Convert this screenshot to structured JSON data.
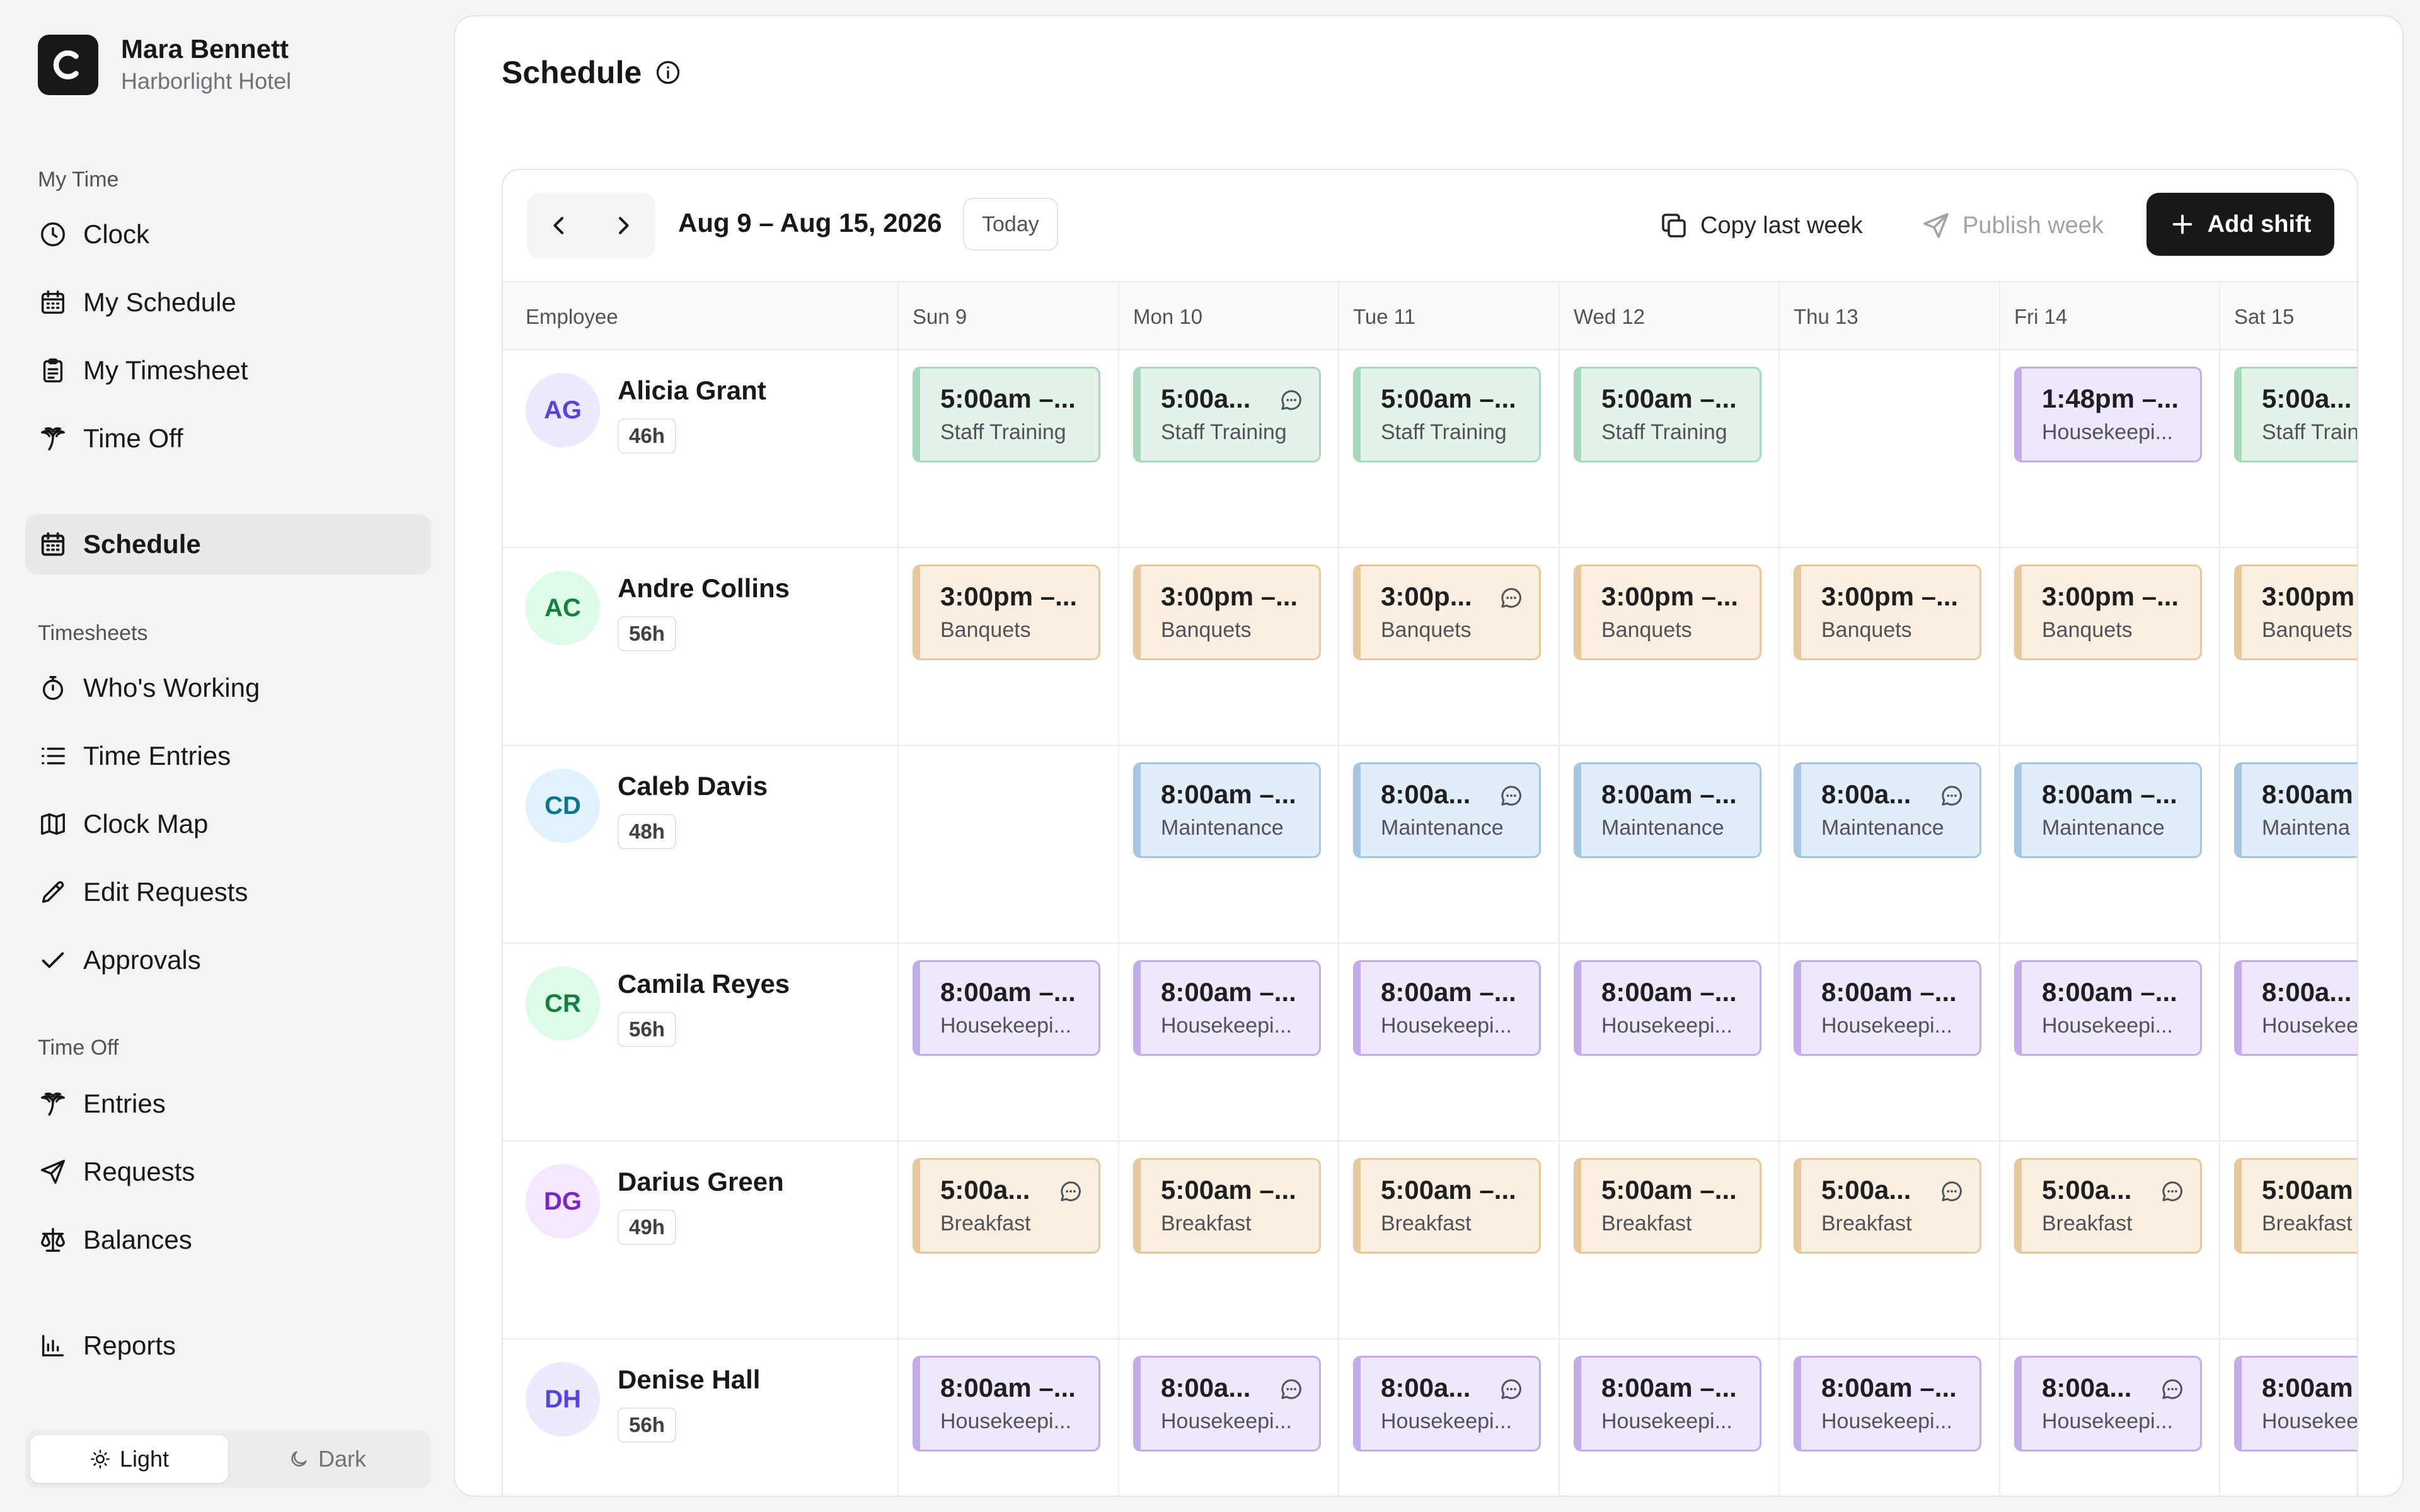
{
  "user": {
    "name": "Mara Bennett",
    "org": "Harborlight Hotel",
    "logo_letter": "C"
  },
  "sidebar": {
    "my_time_label": "My Time",
    "my_time": [
      {
        "label": "Clock",
        "icon": "clock-icon"
      },
      {
        "label": "My Schedule",
        "icon": "calendar-icon"
      },
      {
        "label": "My Timesheet",
        "icon": "clipboard-icon"
      },
      {
        "label": "Time Off",
        "icon": "palm-tree-icon"
      }
    ],
    "schedule": {
      "label": "Schedule",
      "icon": "calendar-icon"
    },
    "timesheets_label": "Timesheets",
    "timesheets": [
      {
        "label": "Who's Working",
        "icon": "stopwatch-icon"
      },
      {
        "label": "Time Entries",
        "icon": "list-icon"
      },
      {
        "label": "Clock Map",
        "icon": "map-icon"
      },
      {
        "label": "Edit Requests",
        "icon": "pencil-icon"
      },
      {
        "label": "Approvals",
        "icon": "check-icon"
      }
    ],
    "time_off_label": "Time Off",
    "time_off": [
      {
        "label": "Entries",
        "icon": "palm-tree-icon"
      },
      {
        "label": "Requests",
        "icon": "send-icon"
      },
      {
        "label": "Balances",
        "icon": "scale-icon"
      }
    ],
    "reports": {
      "label": "Reports",
      "icon": "bar-chart-icon"
    },
    "theme": {
      "light": "Light",
      "dark": "Dark",
      "selected": "Light"
    }
  },
  "page": {
    "title": "Schedule"
  },
  "toolbar": {
    "date_range": "Aug 9 – Aug 15, 2026",
    "today": "Today",
    "copy_last_week": "Copy last week",
    "publish_week": "Publish week",
    "add_shift": "Add shift"
  },
  "columns": [
    "Employee",
    "Sun 9",
    "Mon 10",
    "Tue 11",
    "Wed 12",
    "Thu 13",
    "Fri 14",
    "Sat 15"
  ],
  "colors": {
    "green": "#e3f3ea",
    "orange": "#fbefdf",
    "blue": "#e1edf8",
    "purple": "#efe8fb",
    "accent": "#18181b"
  },
  "employees": [
    {
      "initials": "AG",
      "name": "Alicia Grant",
      "hours": "46h",
      "avatar_bg": "#ede9fe",
      "avatar_fg": "#4f46e5",
      "shifts": [
        {
          "time": "5:00am –...",
          "role": "Staff Training",
          "color": "green",
          "note": false
        },
        {
          "time": "5:00a...",
          "role": "Staff Training",
          "color": "green",
          "note": true
        },
        {
          "time": "5:00am –...",
          "role": "Staff Training",
          "color": "green",
          "note": false
        },
        {
          "time": "5:00am –...",
          "role": "Staff Training",
          "color": "green",
          "note": false
        },
        null,
        {
          "time": "1:48pm –...",
          "role": "Housekeepi...",
          "color": "purple",
          "note": false
        },
        {
          "time": "5:00a...",
          "role": "Staff Traini",
          "color": "green",
          "note": false
        }
      ]
    },
    {
      "initials": "AC",
      "name": "Andre Collins",
      "hours": "56h",
      "avatar_bg": "#dcfce7",
      "avatar_fg": "#15803d",
      "shifts": [
        {
          "time": "3:00pm –...",
          "role": "Banquets",
          "color": "orange",
          "note": false
        },
        {
          "time": "3:00pm –...",
          "role": "Banquets",
          "color": "orange",
          "note": false
        },
        {
          "time": "3:00p...",
          "role": "Banquets",
          "color": "orange",
          "note": true
        },
        {
          "time": "3:00pm –...",
          "role": "Banquets",
          "color": "orange",
          "note": false
        },
        {
          "time": "3:00pm –...",
          "role": "Banquets",
          "color": "orange",
          "note": false
        },
        {
          "time": "3:00pm –...",
          "role": "Banquets",
          "color": "orange",
          "note": false
        },
        {
          "time": "3:00pm",
          "role": "Banquets",
          "color": "orange",
          "note": false
        }
      ]
    },
    {
      "initials": "CD",
      "name": "Caleb Davis",
      "hours": "48h",
      "avatar_bg": "#e0f2fe",
      "avatar_fg": "#0e7490",
      "shifts": [
        null,
        {
          "time": "8:00am –...",
          "role": "Maintenance",
          "color": "blue",
          "note": false
        },
        {
          "time": "8:00a...",
          "role": "Maintenance",
          "color": "blue",
          "note": true
        },
        {
          "time": "8:00am –...",
          "role": "Maintenance",
          "color": "blue",
          "note": false
        },
        {
          "time": "8:00a...",
          "role": "Maintenance",
          "color": "blue",
          "note": true
        },
        {
          "time": "8:00am –...",
          "role": "Maintenance",
          "color": "blue",
          "note": false
        },
        {
          "time": "8:00am",
          "role": "Maintena",
          "color": "blue",
          "note": false
        }
      ]
    },
    {
      "initials": "CR",
      "name": "Camila Reyes",
      "hours": "56h",
      "avatar_bg": "#dcfce7",
      "avatar_fg": "#15803d",
      "shifts": [
        {
          "time": "8:00am –...",
          "role": "Housekeepi...",
          "color": "purple",
          "note": false
        },
        {
          "time": "8:00am –...",
          "role": "Housekeepi...",
          "color": "purple",
          "note": false
        },
        {
          "time": "8:00am –...",
          "role": "Housekeepi...",
          "color": "purple",
          "note": false
        },
        {
          "time": "8:00am –...",
          "role": "Housekeepi...",
          "color": "purple",
          "note": false
        },
        {
          "time": "8:00am –...",
          "role": "Housekeepi...",
          "color": "purple",
          "note": false
        },
        {
          "time": "8:00am –...",
          "role": "Housekeepi...",
          "color": "purple",
          "note": false
        },
        {
          "time": "8:00a...",
          "role": "Housekee",
          "color": "purple",
          "note": false
        }
      ]
    },
    {
      "initials": "DG",
      "name": "Darius Green",
      "hours": "49h",
      "avatar_bg": "#f3e8ff",
      "avatar_fg": "#7e22ce",
      "shifts": [
        {
          "time": "5:00a...",
          "role": "Breakfast",
          "color": "orange",
          "note": true
        },
        {
          "time": "5:00am –...",
          "role": "Breakfast",
          "color": "orange",
          "note": false
        },
        {
          "time": "5:00am –...",
          "role": "Breakfast",
          "color": "orange",
          "note": false
        },
        {
          "time": "5:00am –...",
          "role": "Breakfast",
          "color": "orange",
          "note": false
        },
        {
          "time": "5:00a...",
          "role": "Breakfast",
          "color": "orange",
          "note": true
        },
        {
          "time": "5:00a...",
          "role": "Breakfast",
          "color": "orange",
          "note": true
        },
        {
          "time": "5:00am",
          "role": "Breakfast",
          "color": "orange",
          "note": false
        }
      ]
    },
    {
      "initials": "DH",
      "name": "Denise Hall",
      "hours": "56h",
      "avatar_bg": "#ede9fe",
      "avatar_fg": "#4f46e5",
      "shifts": [
        {
          "time": "8:00am –...",
          "role": "Housekeepi...",
          "color": "purple",
          "note": false
        },
        {
          "time": "8:00a...",
          "role": "Housekeepi...",
          "color": "purple",
          "note": true
        },
        {
          "time": "8:00a...",
          "role": "Housekeepi...",
          "color": "purple",
          "note": true
        },
        {
          "time": "8:00am –...",
          "role": "Housekeepi...",
          "color": "purple",
          "note": false
        },
        {
          "time": "8:00am –...",
          "role": "Housekeepi...",
          "color": "purple",
          "note": false
        },
        {
          "time": "8:00a...",
          "role": "Housekeepi...",
          "color": "purple",
          "note": true
        },
        {
          "time": "8:00am",
          "role": "Housekee",
          "color": "purple",
          "note": false
        }
      ]
    }
  ]
}
